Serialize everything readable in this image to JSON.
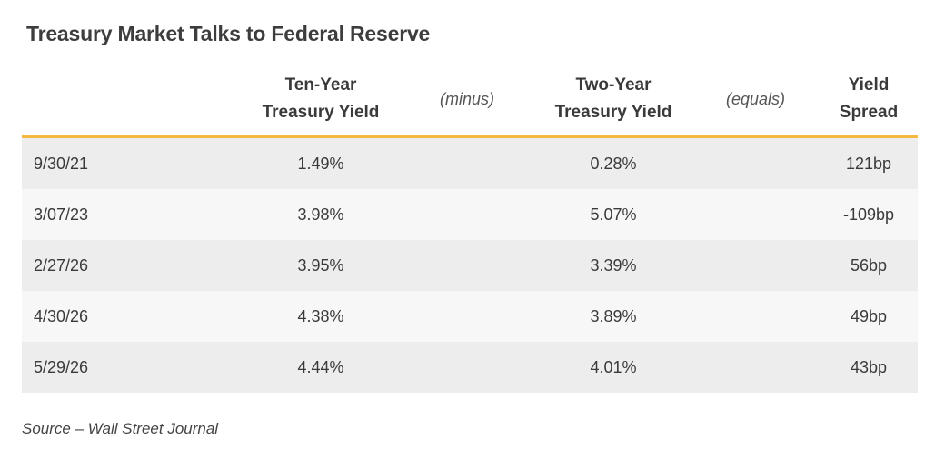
{
  "title": "Treasury Market Talks to Federal Reserve",
  "chart_data": {
    "type": "table",
    "title": "Treasury Market Talks to Federal Reserve",
    "columns": [
      "",
      "Ten-Year\nTreasury Yield",
      "(minus)",
      "Two-Year\nTreasury Yield",
      "(equals)",
      "Yield\nSpread"
    ],
    "rows": [
      {
        "date": "9/30/21",
        "ten_year": "1.49%",
        "two_year": "0.28%",
        "spread": "121bp"
      },
      {
        "date": "3/07/23",
        "ten_year": "3.98%",
        "two_year": "5.07%",
        "spread": "-109bp"
      },
      {
        "date": "2/27/26",
        "ten_year": "3.95%",
        "two_year": "3.39%",
        "spread": "56bp"
      },
      {
        "date": "4/30/26",
        "ten_year": "4.38%",
        "two_year": "3.89%",
        "spread": "49bp"
      },
      {
        "date": "5/29/26",
        "ten_year": "4.44%",
        "two_year": "4.01%",
        "spread": "43bp"
      }
    ]
  },
  "source": "Source – Wall Street Journal",
  "colors": {
    "accent_rule": "#f5b942",
    "row_odd": "#ededee",
    "row_even": "#f7f7f8"
  }
}
